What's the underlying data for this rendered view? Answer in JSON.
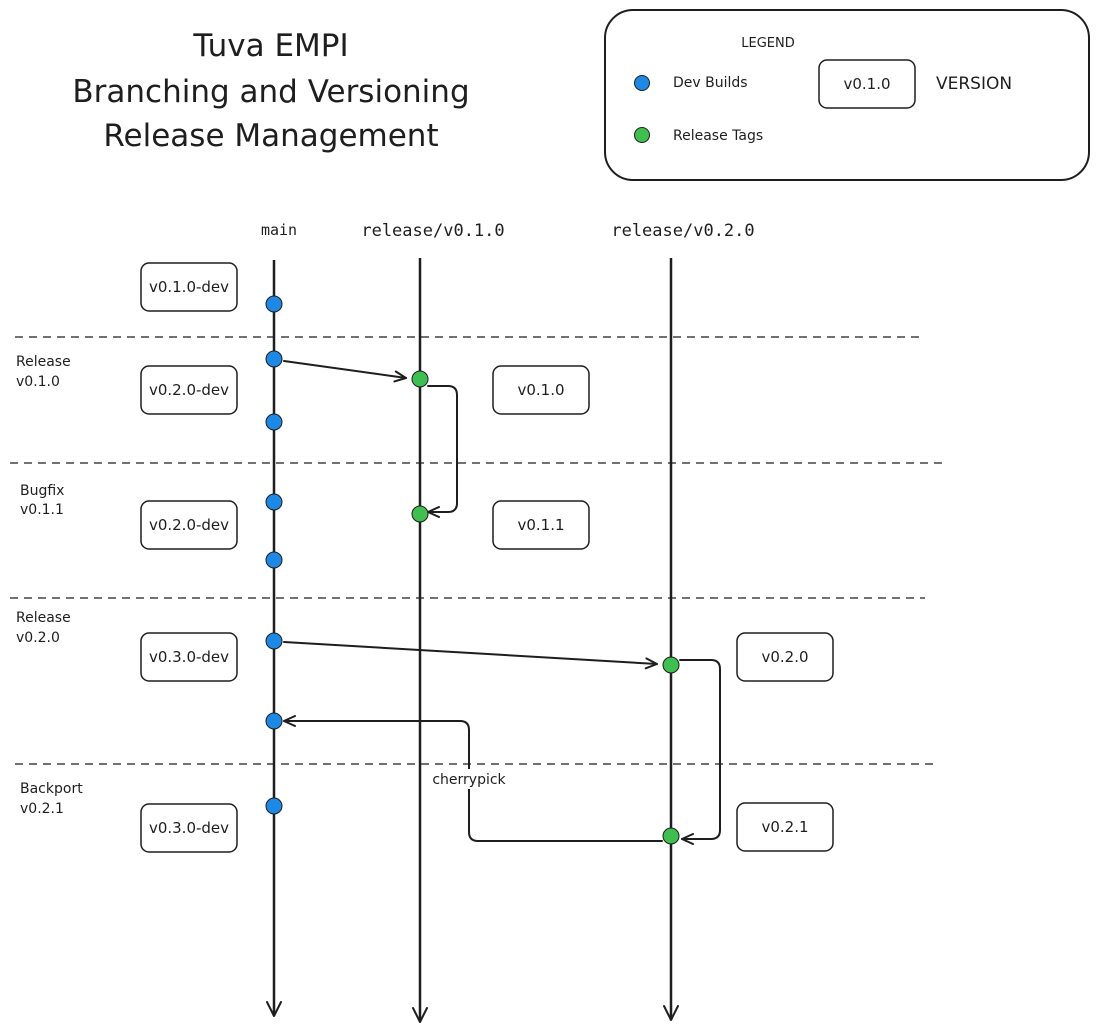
{
  "title": {
    "lines": [
      "Tuva EMPI",
      "Branching and Versioning",
      "Release Management"
    ]
  },
  "legend": {
    "heading": "LEGEND",
    "dev_builds_label": "Dev Builds",
    "release_tags_label": "Release Tags",
    "version_box_label": "v0.1.0",
    "version_text": "VERSION"
  },
  "colors": {
    "dev_build": "#1e88e5",
    "release_tag": "#3fbf4f",
    "stroke": "#1e1e1e"
  },
  "lanes": {
    "main": "main",
    "release_v010": "release/v0.1.0",
    "release_v020": "release/v0.2.0"
  },
  "sections": [
    {
      "title": "Release",
      "version": "v0.1.0"
    },
    {
      "title": "Bugfix",
      "version": "v0.1.1"
    },
    {
      "title": "Release",
      "version": "v0.2.0"
    },
    {
      "title": "Backport",
      "version": "v0.2.1"
    }
  ],
  "dev_versions": [
    "v0.1.0-dev",
    "v0.2.0-dev",
    "v0.2.0-dev",
    "v0.3.0-dev",
    "v0.3.0-dev"
  ],
  "release_versions": [
    "v0.1.0",
    "v0.1.1",
    "v0.2.0",
    "v0.2.1"
  ],
  "arrows": {
    "cherrypick_label": "cherrypick"
  }
}
